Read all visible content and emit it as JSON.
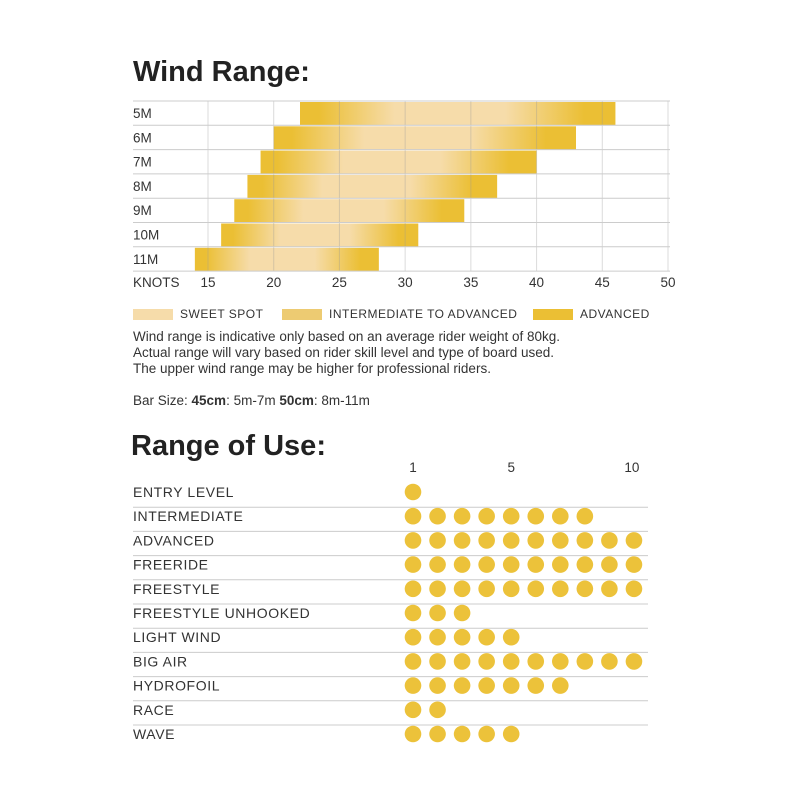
{
  "chart_data": [
    {
      "type": "bar",
      "title": "Wind Range:",
      "xlabel": "KNOTS",
      "xlim": [
        14,
        50
      ],
      "xticks": [
        15,
        20,
        25,
        30,
        35,
        40,
        45,
        50
      ],
      "categories": [
        "5M",
        "6M",
        "7M",
        "8M",
        "9M",
        "10M",
        "11M"
      ],
      "ranges": [
        [
          22,
          46
        ],
        [
          20,
          43
        ],
        [
          19,
          40
        ],
        [
          18,
          37
        ],
        [
          17,
          34.5
        ],
        [
          16,
          31
        ],
        [
          14,
          28
        ]
      ],
      "legend": [
        "SWEET SPOT",
        "INTERMEDIATE TO ADVANCED",
        "ADVANCED"
      ],
      "colors": {
        "sweet": "#f6dcaa",
        "intermediate": "#edcb72",
        "advanced": "#ebbf34"
      }
    },
    {
      "type": "table",
      "title": "Range of Use:",
      "xticks": [
        "1",
        "5",
        "10"
      ],
      "categories": [
        "ENTRY LEVEL",
        "INTERMEDIATE",
        "ADVANCED",
        "FREERIDE",
        "FREESTYLE",
        "FREESTYLE UNHOOKED",
        "LIGHT WIND",
        "BIG AIR",
        "HYDROFOIL",
        "RACE",
        "WAVE"
      ],
      "values": [
        1,
        8,
        10,
        10,
        10,
        3,
        5,
        10,
        7,
        2,
        5
      ],
      "max": 10,
      "dot_color": "#ecc23a"
    }
  ],
  "notes": [
    "Wind range is indicative only based on an average rider weight of 80kg.",
    "Actual range will vary based on rider skill level and type of board used.",
    "The upper wind range may be higher for professional riders."
  ],
  "bar_size": {
    "label": "Bar Size: ",
    "s1": "45cm",
    "r1": ": 5m-7m ",
    "s2": "50cm",
    "r2": ": 8m-11m"
  }
}
